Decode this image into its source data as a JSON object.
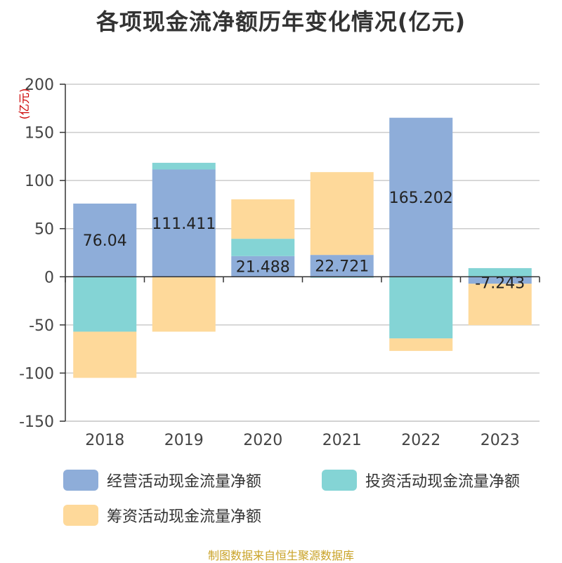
{
  "title": "各项现金流净额历年变化情况(亿元)",
  "footer": "制图数据来自恒生聚源数据库",
  "colors": {
    "operating": "#8eadd9",
    "investing": "#84d4d5",
    "financing": "#fed99a",
    "axis": "#333333",
    "grid": "#cccccc",
    "unit": "#cc0000",
    "label": "#222222",
    "tick": "#444444"
  },
  "chart_data": {
    "type": "bar",
    "stacked": true,
    "ylabel": "(亿元)",
    "ylim": [
      -150,
      200
    ],
    "yticks": [
      -150,
      -100,
      -50,
      0,
      50,
      100,
      150,
      200
    ],
    "grid": true,
    "legend_position": "bottom",
    "categories": [
      "2018",
      "2019",
      "2020",
      "2021",
      "2022",
      "2023"
    ],
    "series": [
      {
        "name": "经营活动现金流量净额",
        "color_key": "operating",
        "values": [
          76.04,
          111.411,
          21.488,
          22.721,
          165.202,
          -7.243
        ],
        "data_labels": [
          "76.04",
          "111.411",
          "21.488",
          "22.721",
          "165.202",
          "-7.243"
        ]
      },
      {
        "name": "投资活动现金流量净额",
        "color_key": "investing",
        "values": [
          -57,
          7,
          18,
          -1,
          -64,
          9
        ]
      },
      {
        "name": "筹资活动现金流量净额",
        "color_key": "financing",
        "values": [
          -48,
          -57,
          41,
          86,
          -13,
          -43
        ]
      }
    ]
  }
}
